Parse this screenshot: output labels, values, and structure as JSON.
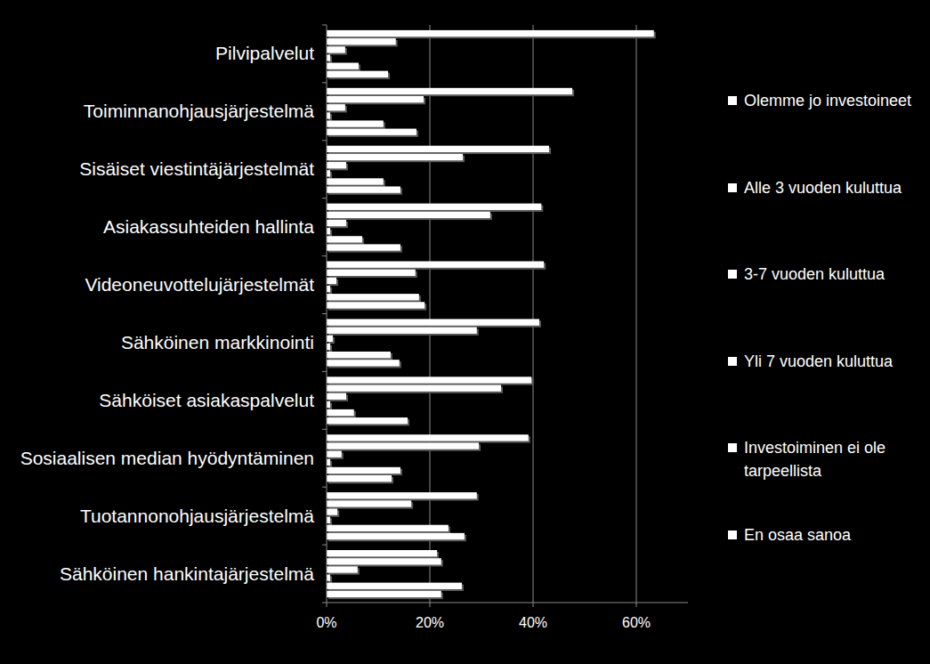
{
  "chart_data": {
    "type": "bar",
    "orientation": "horizontal",
    "grid": true,
    "legend": "right",
    "categories": [
      "Pilvipalvelut",
      "Toiminnanohjausjärjestelmä",
      "Sisäiset viestintäjärjestelmät",
      "Asiakassuhteiden hallinta",
      "Videoneuvottelujärjestelmät",
      "Sähköinen markkinointi",
      "Sähköiset asiakaspalvelut",
      "Sosiaalisen median hyödyntäminen",
      "Tuotannonohjausjärjestelmä",
      "Sähköinen hankintajärjestelmä"
    ],
    "series": [
      {
        "name": "Olemme jo investoineet",
        "color": "#ffffff",
        "values": [
          63.4,
          47.6,
          43.1,
          41.6,
          42.1,
          41.2,
          39.7,
          39.1,
          29.1,
          21.4
        ]
      },
      {
        "name": "Alle 3 vuoden kuluttua",
        "color": "#ffffff",
        "values": [
          13.4,
          18.8,
          26.4,
          31.7,
          17.2,
          29.1,
          33.8,
          29.5,
          16.4,
          22.2
        ]
      },
      {
        "name": "3-7 vuoden kuluttua",
        "color": "#ffffff",
        "values": [
          3.6,
          3.6,
          3.8,
          3.8,
          1.9,
          1.2,
          3.8,
          2.9,
          2.1,
          6.0
        ]
      },
      {
        "name": "Yli 7 vuoden kuluttua",
        "color": "#ffffff",
        "values": [
          0.7,
          0.7,
          0.7,
          0.7,
          0.7,
          0.7,
          0.7,
          0.7,
          0.7,
          0.7
        ]
      },
      {
        "name": "Investoiminen ei ole tarpeellista",
        "color": "#ffffff",
        "values": [
          6.2,
          11.0,
          11.0,
          6.9,
          17.9,
          12.4,
          5.3,
          14.3,
          23.6,
          26.2
        ]
      },
      {
        "name": "En osaa sanoa",
        "color": "#ffffff",
        "values": [
          11.9,
          17.4,
          14.3,
          14.3,
          19.0,
          14.1,
          15.7,
          12.6,
          26.7,
          22.2
        ]
      }
    ],
    "xlim": [
      0,
      70
    ],
    "xticks": [
      {
        "value": 0,
        "label": "0%"
      },
      {
        "value": 20,
        "label": "20%"
      },
      {
        "value": 40,
        "label": "40%"
      },
      {
        "value": 60,
        "label": "60%"
      }
    ]
  }
}
